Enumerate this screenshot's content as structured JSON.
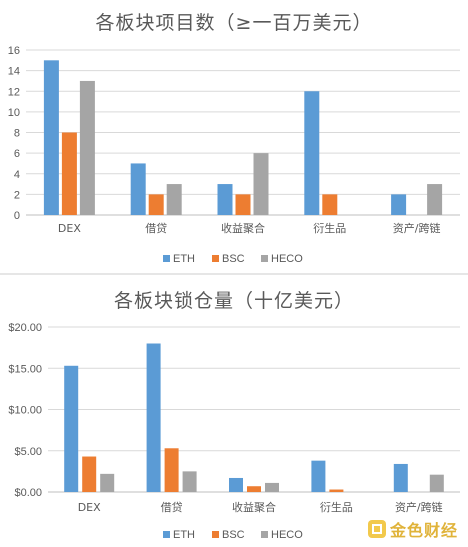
{
  "colors": {
    "ETH": "#5b9bd5",
    "BSC": "#ed7d31",
    "HECO": "#a5a5a5",
    "grid": "#d9d9d9",
    "axis": "#bfbfbf"
  },
  "chart_data": [
    {
      "type": "bar",
      "title": "各板块项目数（≥一百万美元）",
      "categories": [
        "DEX",
        "借贷",
        "收益聚合",
        "衍生品",
        "资产/跨链"
      ],
      "series": [
        {
          "name": "ETH",
          "values": [
            15,
            5,
            3,
            12,
            2
          ]
        },
        {
          "name": "BSC",
          "values": [
            8,
            2,
            2,
            2,
            0
          ]
        },
        {
          "name": "HECO",
          "values": [
            13,
            3,
            6,
            0,
            3
          ]
        }
      ],
      "ylim": [
        0,
        16
      ],
      "yticks": [
        "0",
        "2",
        "4",
        "6",
        "8",
        "10",
        "12",
        "14",
        "16"
      ],
      "grid": true,
      "legend_position": "bottom"
    },
    {
      "type": "bar",
      "title": "各板块锁仓量（十亿美元）",
      "categories": [
        "DEX",
        "借贷",
        "收益聚合",
        "衍生品",
        "资产/跨链"
      ],
      "series": [
        {
          "name": "ETH",
          "values": [
            15.3,
            18.0,
            1.7,
            3.8,
            3.4
          ]
        },
        {
          "name": "BSC",
          "values": [
            4.3,
            5.3,
            0.7,
            0.3,
            0.0
          ]
        },
        {
          "name": "HECO",
          "values": [
            2.2,
            2.5,
            1.1,
            0.0,
            2.1
          ]
        }
      ],
      "ylim": [
        0,
        20
      ],
      "yticks": [
        "$0.00",
        "$5.00",
        "$10.00",
        "$15.00",
        "$20.00"
      ],
      "grid": true,
      "legend_position": "bottom"
    }
  ],
  "watermark": {
    "text": "金色财经",
    "icon": "jinse-logo-icon"
  }
}
